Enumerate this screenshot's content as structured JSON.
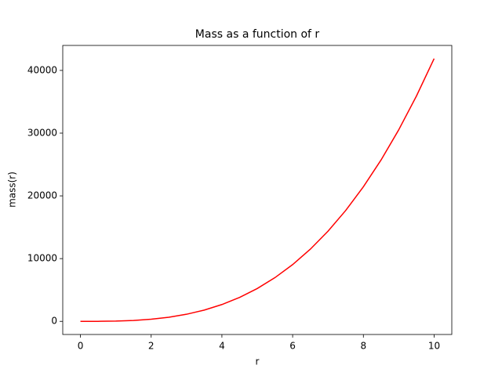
{
  "chart_data": {
    "type": "line",
    "title": "Mass as a function of r",
    "x_label": "r",
    "y_label": "mass(r)",
    "x": [
      0,
      0.5,
      1,
      1.5,
      2,
      2.5,
      3,
      3.5,
      4,
      4.5,
      5,
      5.5,
      6,
      6.5,
      7,
      7.5,
      8,
      8.5,
      9,
      9.5,
      10
    ],
    "series": [
      {
        "color": "#ff0000",
        "values": [
          0,
          5.2,
          41.9,
          141.4,
          335.1,
          654.5,
          1131,
          1796,
          2681,
          3817,
          5236,
          6969,
          9048,
          11503,
          14368,
          17671,
          21447,
          25724,
          30536,
          35914,
          41888
        ]
      }
    ],
    "xlim": [
      -0.5,
      10.5
    ],
    "ylim": [
      -2094,
      43982
    ],
    "xticks": [
      0,
      2,
      4,
      6,
      8,
      10
    ],
    "yticks": [
      0,
      10000,
      20000,
      30000,
      40000
    ],
    "grid": false
  }
}
